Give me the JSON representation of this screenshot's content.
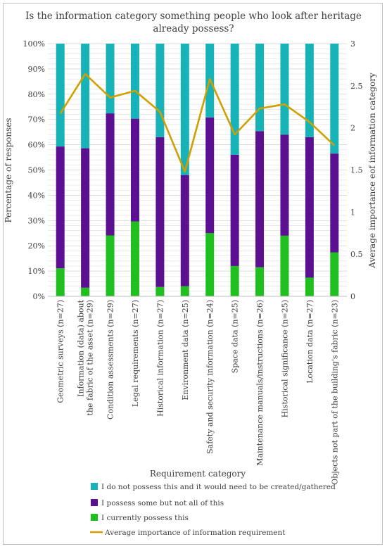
{
  "chart_data": {
    "type": "bar",
    "stacked": true,
    "title": "Is the information category something people who look after heritage already possess?",
    "xlabel": "Requirement category",
    "ylabel": "Percentage of responses",
    "y2label": "Average importance eof information category",
    "ylim": [
      0,
      100
    ],
    "y2lim": [
      0,
      3
    ],
    "yticks": [
      "0%",
      "10%",
      "20%",
      "30%",
      "40%",
      "50%",
      "60%",
      "70%",
      "80%",
      "90%",
      "100%"
    ],
    "y2ticks": [
      "0",
      "0.5",
      "1",
      "1.5",
      "2",
      "2.5",
      "3"
    ],
    "grid": true,
    "legend_position": "bottom",
    "categories": [
      "Geometric surveys (n=27)",
      "Information (data) about the fabric of the asset (n=29)",
      "Condition assessments (n=29)",
      "Legal requirements (n=27)",
      "Historical information (n=27)",
      "Environment data (n=25)",
      "Safety and security information (n=24)",
      "Space data (n=25)",
      "Maintenance manuals/instructions (n=26)",
      "Historical significance (n=25)",
      "Location data (n=27)",
      "Objects not part of the building's fabric (n=23)"
    ],
    "category_lines": [
      [
        "Geometric surveys (n=27)"
      ],
      [
        "Information (data) about",
        "the fabric of the asset (n=29)"
      ],
      [
        "Condition assessments (n=29)"
      ],
      [
        "Legal requirements (n=27)"
      ],
      [
        "Historical information (n=27)"
      ],
      [
        "Environment data (n=25)"
      ],
      [
        "Safety and security information (n=24)"
      ],
      [
        "Space data (n=25)"
      ],
      [
        "Maintenance manuals/instructions (n=26)"
      ],
      [
        "Historical significance (n=25)"
      ],
      [
        "Location data (n=27)"
      ],
      [
        "Objects not part of the building's fabric (n=23)"
      ]
    ],
    "series": [
      {
        "name": "I currently possess this",
        "kind": "bar",
        "color": "#1fbf1f",
        "values": [
          11.1,
          3.4,
          24.1,
          29.6,
          3.7,
          4.0,
          25.0,
          12.0,
          11.5,
          24.0,
          7.4,
          17.4
        ]
      },
      {
        "name": "I possess some but not all of this",
        "kind": "bar",
        "color": "#5b0f91",
        "values": [
          48.2,
          55.2,
          48.3,
          40.7,
          59.3,
          44.0,
          45.8,
          44.0,
          53.9,
          40.0,
          55.6,
          39.1
        ]
      },
      {
        "name": "I do not possess this and it would need to be created/gathered",
        "kind": "bar",
        "color": "#17b3b8",
        "values": [
          40.7,
          41.4,
          27.6,
          29.7,
          37.0,
          52.0,
          29.2,
          44.0,
          34.6,
          36.0,
          37.0,
          43.5
        ]
      },
      {
        "name": "Average importance of information requirement",
        "kind": "line",
        "axis": "y2",
        "color": "#cfa000",
        "values": [
          2.17,
          2.64,
          2.36,
          2.44,
          2.19,
          1.48,
          2.58,
          1.92,
          2.23,
          2.28,
          2.07,
          1.79
        ]
      }
    ],
    "legend_order": [
      2,
      1,
      0,
      3
    ]
  }
}
